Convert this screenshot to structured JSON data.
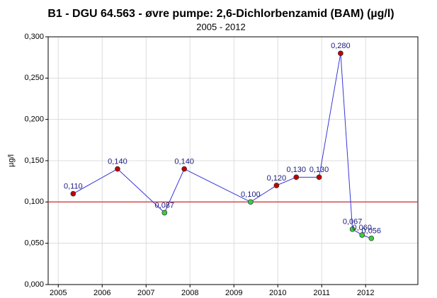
{
  "chart_data": {
    "type": "line",
    "title": "B1 - DGU 64.563 - øvre pumpe: 2,6-Dichlorbenzamid (BAM) (µg/l)",
    "subtitle": "2005 - 2012",
    "y_label": "µg/l",
    "x": [
      2005.34,
      2006.35,
      2007.42,
      2007.87,
      2009.38,
      2009.97,
      2010.42,
      2010.94,
      2011.43,
      2011.7,
      2011.92,
      2012.13
    ],
    "series": [
      {
        "name": "BAM",
        "color": "#3838d8",
        "values": [
          0.11,
          0.14,
          0.087,
          0.14,
          0.1,
          0.12,
          0.13,
          0.13,
          0.28,
          0.067,
          0.06,
          0.056
        ],
        "value_labels": [
          "0,110",
          "0,140",
          "0,087",
          "0,140",
          "0,100",
          "0,120",
          "0,130",
          "0,130",
          "0,280",
          "0,067",
          "0,060",
          "0,056"
        ],
        "point_colors": [
          "#c00000",
          "#c00000",
          "#3ccc3c",
          "#c00000",
          "#3ccc3c",
          "#c00000",
          "#c00000",
          "#c00000",
          "#c00000",
          "#3ccc3c",
          "#3ccc3c",
          "#3ccc3c"
        ]
      }
    ],
    "threshold": 0.1,
    "threshold_color": "#d04040",
    "xlim": [
      2004.77,
      2013.19
    ],
    "xticks": [
      2005,
      2006,
      2007,
      2008,
      2009,
      2010,
      2011,
      2012
    ],
    "ylim": [
      0,
      0.3
    ],
    "yticks": [
      {
        "value": 0,
        "label": "0,000"
      },
      {
        "value": 0.05,
        "label": "0,050"
      },
      {
        "value": 0.1,
        "label": "0,100"
      },
      {
        "value": 0.15,
        "label": "0,150"
      },
      {
        "value": 0.2,
        "label": "0,200"
      },
      {
        "value": 0.25,
        "label": "0,250"
      },
      {
        "value": 0.3,
        "label": "0,300"
      }
    ],
    "grid": true
  }
}
